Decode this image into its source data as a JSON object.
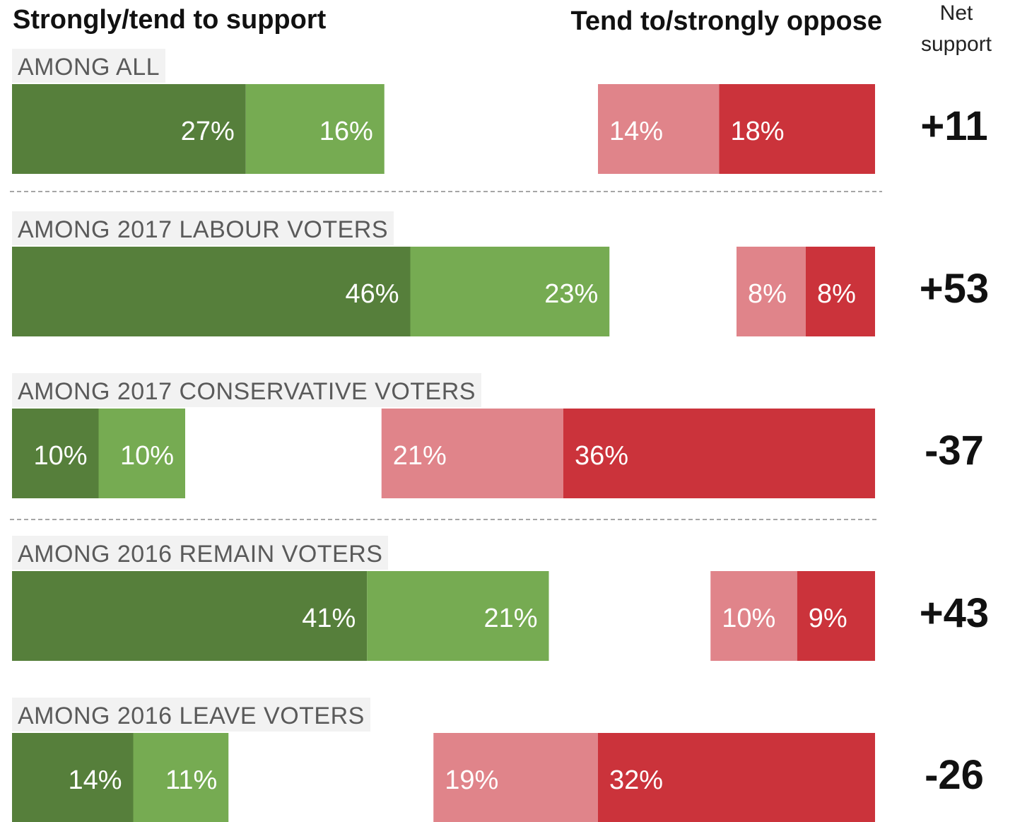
{
  "chart_data": {
    "type": "bar",
    "orientation": "horizontal",
    "stacking": "diverging",
    "headers": {
      "support": "Strongly/tend to support",
      "oppose": "Tend to/strongly oppose",
      "net": [
        "Net",
        "support"
      ]
    },
    "groups": [
      "AMONG ALL",
      "AMONG 2017 LABOUR VOTERS",
      "AMONG 2017 CONSERVATIVE VOTERS",
      "AMONG 2016 REMAIN VOTERS",
      "AMONG 2016 LEAVE VOTERS"
    ],
    "series": [
      {
        "key": "strongly_support",
        "side": "support",
        "values": [
          27,
          46,
          10,
          41,
          14
        ],
        "color": "#567f3b"
      },
      {
        "key": "tend_support",
        "side": "support",
        "values": [
          16,
          23,
          10,
          21,
          11
        ],
        "color": "#76ab52"
      },
      {
        "key": "tend_oppose",
        "side": "oppose",
        "values": [
          14,
          8,
          21,
          10,
          19
        ],
        "color": "#e0848a"
      },
      {
        "key": "strongly_oppose",
        "side": "oppose",
        "values": [
          18,
          8,
          36,
          9,
          32
        ],
        "color": "#cb333b"
      }
    ],
    "value_suffix": "%",
    "net_support": [
      "+11",
      "+53",
      "-37",
      "+43",
      "-26"
    ],
    "label_background": "#f2f2f2",
    "separator_after_groups": [
      0,
      2
    ],
    "separator_color": "#a6a6a6"
  }
}
